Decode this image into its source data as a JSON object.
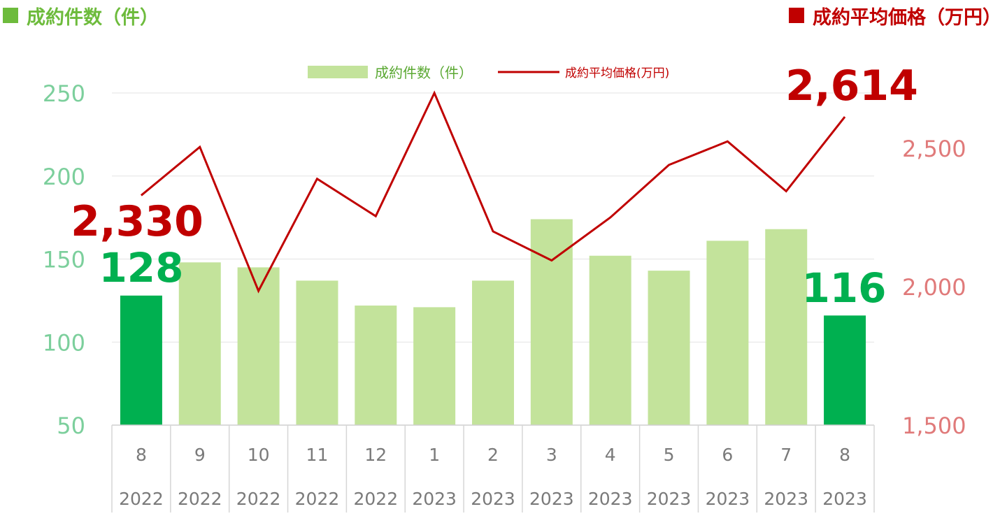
{
  "header": {
    "left_title": "成約件数（件）",
    "right_title": "成約平均価格（万円）"
  },
  "colors": {
    "bar": "#c3e39b",
    "bar_highlight": "#00b050",
    "line": "#c00000",
    "left_axis": "#7ccf9c",
    "right_axis": "#e07a7a",
    "left_header": "#6dbb3c",
    "right_header": "#c00000"
  },
  "chart_data": {
    "type": "bar",
    "categories": [
      "8\n2022",
      "9\n2022",
      "10\n2022",
      "11\n2022",
      "12\n2022",
      "1\n2023",
      "2\n2023",
      "3\n2023",
      "4\n2023",
      "5\n2023",
      "6\n2023",
      "7\n2023",
      "8\n2023"
    ],
    "month_labels": [
      "8",
      "9",
      "10",
      "11",
      "12",
      "1",
      "2",
      "3",
      "4",
      "5",
      "6",
      "7",
      "8"
    ],
    "year_labels": [
      "2022",
      "2022",
      "2022",
      "2022",
      "2022",
      "2023",
      "2023",
      "2023",
      "2023",
      "2023",
      "2023",
      "2023",
      "2023"
    ],
    "series": [
      {
        "name": "成約件数（件）",
        "type": "bar",
        "axis": "left",
        "values": [
          128,
          148,
          145,
          137,
          122,
          121,
          137,
          174,
          152,
          143,
          161,
          168,
          116
        ],
        "highlight": [
          true,
          false,
          false,
          false,
          false,
          false,
          false,
          false,
          false,
          false,
          false,
          false,
          true
        ]
      },
      {
        "name": "成約平均価格(万円)",
        "type": "line",
        "axis": "right",
        "values": [
          2330,
          2505,
          1985,
          2390,
          2255,
          2700,
          2200,
          2095,
          2250,
          2440,
          2525,
          2345,
          2614
        ]
      }
    ],
    "left_axis": {
      "min": 50,
      "max": 250,
      "ticks": [
        50,
        100,
        150,
        200,
        250
      ]
    },
    "right_axis": {
      "min": 1500,
      "max": 2700,
      "ticks": [
        "1,500",
        "2,000",
        "2,500"
      ],
      "tick_values": [
        1500,
        2000,
        2500
      ]
    },
    "annotations": {
      "price_start": "2,330",
      "price_end": "2,614",
      "count_start": "128",
      "count_end": "116"
    },
    "legend": {
      "position": "top-center"
    },
    "grid": true
  }
}
